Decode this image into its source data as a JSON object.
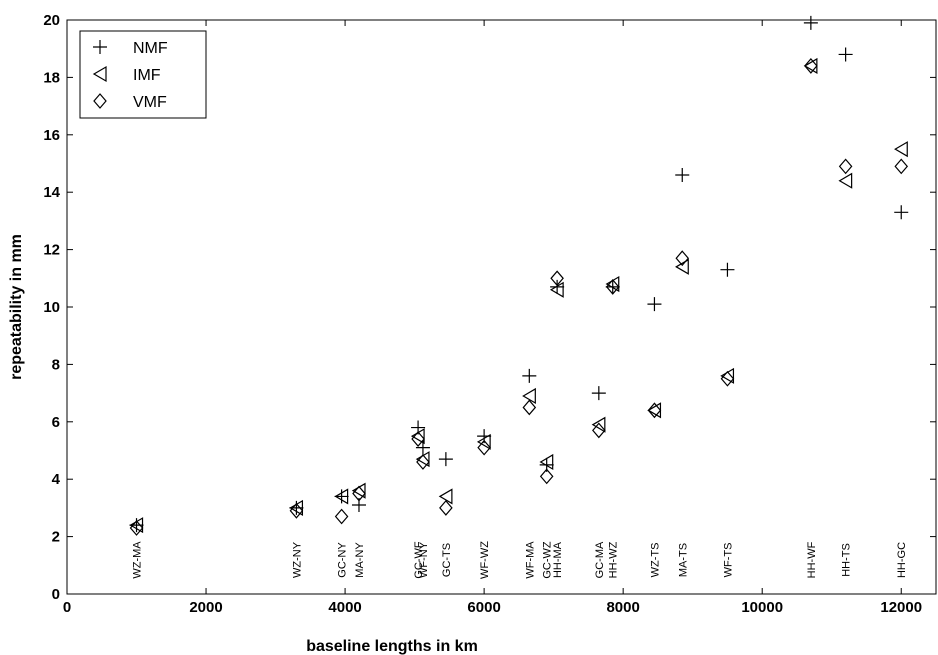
{
  "chart_data": {
    "type": "scatter",
    "title": "",
    "xlabel": "baseline lengths in km",
    "ylabel": "repeatability in mm",
    "xlim": [
      0,
      12500
    ],
    "ylim": [
      0,
      20
    ],
    "xticks": [
      0,
      2000,
      4000,
      6000,
      8000,
      10000,
      12000
    ],
    "yticks": [
      0,
      2,
      4,
      6,
      8,
      10,
      12,
      14,
      16,
      18,
      20
    ],
    "grid": false,
    "legend_position": "top-left",
    "series": [
      {
        "name": "NMF",
        "marker": "plus",
        "points": [
          {
            "x": 1000,
            "y": 2.4
          },
          {
            "x": 3300,
            "y": 3.0
          },
          {
            "x": 3950,
            "y": 3.4
          },
          {
            "x": 4200,
            "y": 3.1
          },
          {
            "x": 5050,
            "y": 5.8
          },
          {
            "x": 5120,
            "y": 5.1
          },
          {
            "x": 5450,
            "y": 4.7
          },
          {
            "x": 6000,
            "y": 5.5
          },
          {
            "x": 6650,
            "y": 7.6
          },
          {
            "x": 6900,
            "y": 4.5
          },
          {
            "x": 7050,
            "y": 10.7
          },
          {
            "x": 7650,
            "y": 7.0
          },
          {
            "x": 7850,
            "y": 10.7
          },
          {
            "x": 8450,
            "y": 10.1
          },
          {
            "x": 8850,
            "y": 14.6
          },
          {
            "x": 9500,
            "y": 11.3
          },
          {
            "x": 10700,
            "y": 19.9
          },
          {
            "x": 11200,
            "y": 18.8
          },
          {
            "x": 12000,
            "y": 13.3
          }
        ]
      },
      {
        "name": "IMF",
        "marker": "triangle-left",
        "points": [
          {
            "x": 1000,
            "y": 2.4
          },
          {
            "x": 3300,
            "y": 3.0
          },
          {
            "x": 3950,
            "y": 3.4
          },
          {
            "x": 4200,
            "y": 3.6
          },
          {
            "x": 5050,
            "y": 5.5
          },
          {
            "x": 5120,
            "y": 4.7
          },
          {
            "x": 5450,
            "y": 3.4
          },
          {
            "x": 6000,
            "y": 5.3
          },
          {
            "x": 6650,
            "y": 6.9
          },
          {
            "x": 6900,
            "y": 4.6
          },
          {
            "x": 7050,
            "y": 10.6
          },
          {
            "x": 7650,
            "y": 5.9
          },
          {
            "x": 7850,
            "y": 10.8
          },
          {
            "x": 8450,
            "y": 6.4
          },
          {
            "x": 8850,
            "y": 11.4
          },
          {
            "x": 9500,
            "y": 7.6
          },
          {
            "x": 10700,
            "y": 18.4
          },
          {
            "x": 11200,
            "y": 14.4
          },
          {
            "x": 12000,
            "y": 15.5
          }
        ]
      },
      {
        "name": "VMF",
        "marker": "diamond",
        "points": [
          {
            "x": 1000,
            "y": 2.3
          },
          {
            "x": 3300,
            "y": 2.9
          },
          {
            "x": 3950,
            "y": 2.7
          },
          {
            "x": 4200,
            "y": 3.5
          },
          {
            "x": 5050,
            "y": 5.4
          },
          {
            "x": 5120,
            "y": 4.6
          },
          {
            "x": 5450,
            "y": 3.0
          },
          {
            "x": 6000,
            "y": 5.1
          },
          {
            "x": 6650,
            "y": 6.5
          },
          {
            "x": 6900,
            "y": 4.1
          },
          {
            "x": 7050,
            "y": 11.0
          },
          {
            "x": 7650,
            "y": 5.7
          },
          {
            "x": 7850,
            "y": 10.7
          },
          {
            "x": 8450,
            "y": 6.4
          },
          {
            "x": 8850,
            "y": 11.7
          },
          {
            "x": 9500,
            "y": 7.5
          },
          {
            "x": 10700,
            "y": 18.4
          },
          {
            "x": 11200,
            "y": 14.9
          },
          {
            "x": 12000,
            "y": 14.9
          }
        ]
      }
    ],
    "baseline_labels": [
      {
        "text": "WZ-MA",
        "x": 1000
      },
      {
        "text": "WZ-NY",
        "x": 3300
      },
      {
        "text": "GC-NY",
        "x": 3950
      },
      {
        "text": "MA-NY",
        "x": 4200
      },
      {
        "text": "GC-WF",
        "x": 5050
      },
      {
        "text": "WF-NY",
        "x": 5120
      },
      {
        "text": "GC-TS",
        "x": 5450
      },
      {
        "text": "WF-WZ",
        "x": 6000
      },
      {
        "text": "WF-MA",
        "x": 6650
      },
      {
        "text": "GC-WZ",
        "x": 6900
      },
      {
        "text": "HH-MA",
        "x": 7050
      },
      {
        "text": "GC-MA",
        "x": 7650
      },
      {
        "text": "HH-WZ",
        "x": 7850
      },
      {
        "text": "WZ-TS",
        "x": 8450
      },
      {
        "text": "MA-TS",
        "x": 8850
      },
      {
        "text": "WF-TS",
        "x": 9500
      },
      {
        "text": "HH-WF",
        "x": 10700
      },
      {
        "text": "HH-TS",
        "x": 11200
      },
      {
        "text": "HH-GC",
        "x": 12000
      }
    ]
  }
}
